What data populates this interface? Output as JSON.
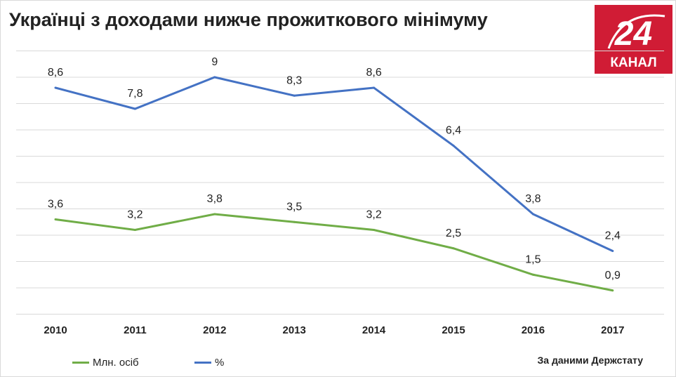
{
  "title": "Українці з доходами нижче прожиткового мінімуму",
  "logo": {
    "number": "24",
    "text": "КАНАЛ",
    "color": "#d01c35"
  },
  "source": "За даними Держстату",
  "chart_data": {
    "type": "line",
    "title": "Українці з доходами нижче прожиткового мінімуму",
    "categories": [
      "2010",
      "2011",
      "2012",
      "2013",
      "2014",
      "2015",
      "2016",
      "2017"
    ],
    "ylim": [
      0,
      10
    ],
    "grid": true,
    "legend": "bottom-left",
    "series": [
      {
        "name": "Млн. осіб",
        "color": "#70ad47",
        "values": [
          3.6,
          3.2,
          3.8,
          3.5,
          3.2,
          2.5,
          1.5,
          0.9
        ],
        "labels": [
          "3,6",
          "3,2",
          "3,8",
          "3,5",
          "3,2",
          "2,5",
          "1,5",
          "0,9"
        ]
      },
      {
        "name": "%",
        "color": "#4472c4",
        "values": [
          8.6,
          7.8,
          9,
          8.3,
          8.6,
          6.4,
          3.8,
          2.4
        ],
        "labels": [
          "8,6",
          "7,8",
          "9",
          "8,3",
          "8,6",
          "6,4",
          "3,8",
          "2,4"
        ]
      }
    ]
  }
}
